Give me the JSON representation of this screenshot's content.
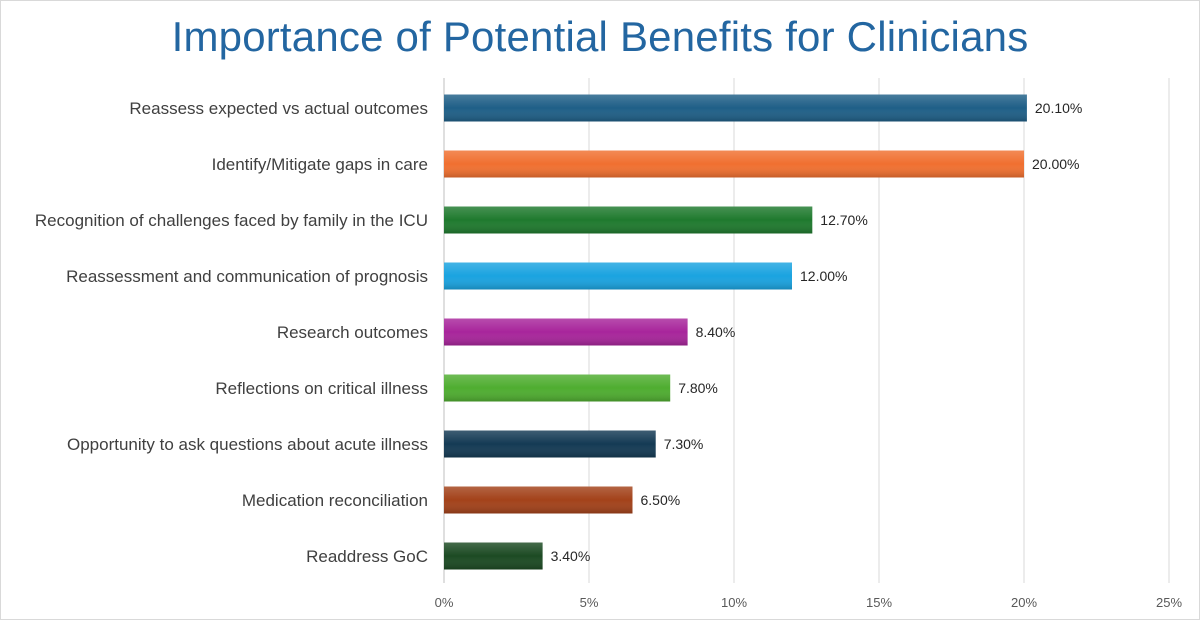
{
  "chart_data": {
    "type": "bar",
    "orientation": "horizontal",
    "title": "Importance of Potential Benefits for Clinicians",
    "xlabel": "",
    "ylabel": "",
    "xlim": [
      0,
      25
    ],
    "x_ticks": [
      "0%",
      "5%",
      "10%",
      "15%",
      "20%",
      "25%"
    ],
    "grid": true,
    "categories": [
      "Reassess expected vs actual outcomes",
      "Identify/Mitigate gaps in care",
      "Recognition of challenges faced by family in the ICU",
      "Reassessment and communication of prognosis",
      "Research outcomes",
      "Reflections on critical illness",
      "Opportunity to ask questions about acute illness",
      "Medication reconciliation",
      "Readdress GoC"
    ],
    "values": [
      20.1,
      20.0,
      12.7,
      12.0,
      8.4,
      7.8,
      7.3,
      6.5,
      3.4
    ],
    "value_labels": [
      "20.10%",
      "20.00%",
      "12.70%",
      "12.00%",
      "8.40%",
      "7.80%",
      "7.30%",
      "6.50%",
      "3.40%"
    ],
    "colors": [
      "#1f5f87",
      "#f07030",
      "#1f7a2e",
      "#1aa3e0",
      "#a8259b",
      "#4fad30",
      "#143a54",
      "#a3421a",
      "#1c4a23"
    ]
  }
}
